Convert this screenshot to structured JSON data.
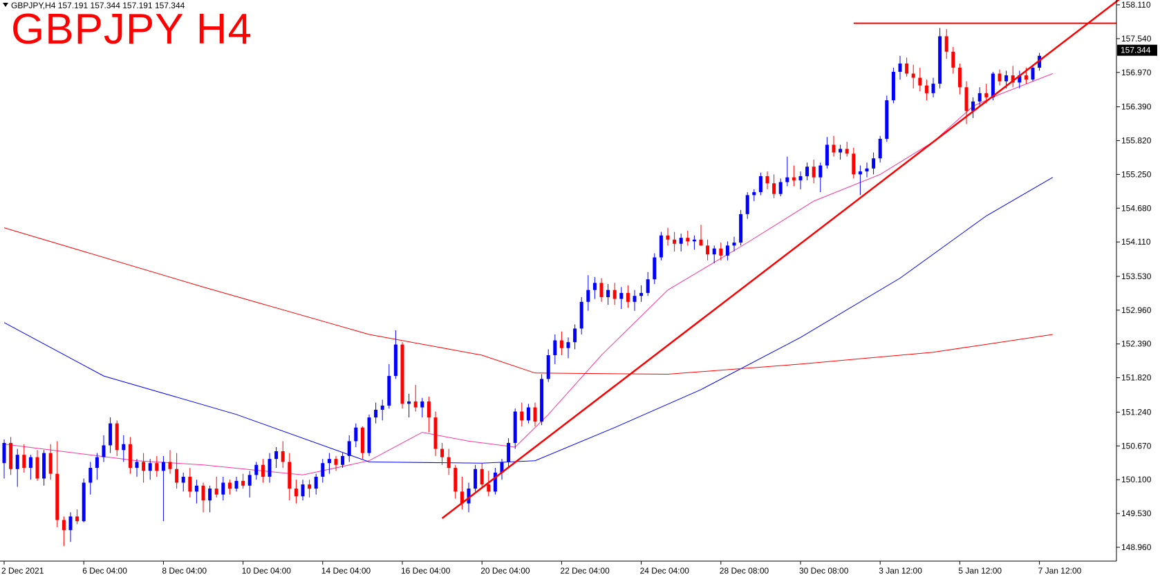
{
  "header": {
    "symbol_line": "GBPJPY,H4  157.191 157.344 157.191 157.344"
  },
  "title": "GBPJPY H4",
  "chart_data": {
    "type": "candlestick",
    "symbol": "GBPJPY",
    "timeframe": "H4",
    "ohlc_header": {
      "open": 157.191,
      "high": 157.344,
      "low": 157.191,
      "close": 157.344
    },
    "current_price": "157.344",
    "y_ticks": [
      "158.110",
      "157.540",
      "156.970",
      "156.390",
      "155.820",
      "155.250",
      "154.680",
      "154.110",
      "153.530",
      "152.960",
      "152.390",
      "151.820",
      "151.240",
      "150.670",
      "150.100",
      "149.530",
      "148.960"
    ],
    "x_ticks": [
      "2 Dec 2021",
      "6 Dec 04:00",
      "8 Dec 04:00",
      "10 Dec 04:00",
      "14 Dec 04:00",
      "16 Dec 04:00",
      "20 Dec 04:00",
      "22 Dec 04:00",
      "24 Dec 04:00",
      "28 Dec 08:00",
      "30 Dec 08:00",
      "3 Jan 12:00",
      "5 Jan 12:00",
      "7 Jan 12:00"
    ],
    "y_range": [
      148.7,
      158.2
    ],
    "colors": {
      "bull": "#0000ff",
      "bear": "#ff0000",
      "ma_fast": "#ff3399",
      "ma_mid": "#0000ff",
      "ma_slow": "#ff0000",
      "trendlines": "#ff0000"
    },
    "candles_ohlc": [
      [
        150.38,
        150.78,
        150.12,
        150.72
      ],
      [
        150.72,
        150.82,
        150.18,
        150.28
      ],
      [
        150.28,
        150.62,
        149.98,
        150.52
      ],
      [
        150.52,
        150.7,
        150.22,
        150.3
      ],
      [
        150.3,
        150.52,
        150.1,
        150.48
      ],
      [
        150.48,
        150.6,
        150.08,
        150.12
      ],
      [
        150.12,
        150.6,
        150.0,
        150.55
      ],
      [
        150.55,
        150.7,
        150.1,
        150.2
      ],
      [
        150.2,
        150.75,
        149.3,
        149.42
      ],
      [
        149.42,
        149.48,
        148.98,
        149.25
      ],
      [
        149.25,
        149.55,
        149.05,
        149.48
      ],
      [
        149.48,
        149.6,
        149.35,
        149.4
      ],
      [
        149.4,
        150.12,
        149.38,
        150.05
      ],
      [
        150.05,
        150.4,
        149.85,
        150.3
      ],
      [
        150.3,
        150.55,
        150.1,
        150.48
      ],
      [
        150.48,
        150.85,
        150.4,
        150.68
      ],
      [
        150.68,
        151.15,
        150.55,
        151.05
      ],
      [
        151.05,
        151.1,
        150.5,
        150.6
      ],
      [
        150.6,
        150.85,
        150.4,
        150.7
      ],
      [
        150.7,
        150.82,
        150.2,
        150.3
      ],
      [
        150.3,
        150.45,
        150.15,
        150.4
      ],
      [
        150.4,
        150.55,
        150.05,
        150.25
      ],
      [
        150.25,
        150.45,
        150.1,
        150.38
      ],
      [
        150.38,
        150.5,
        150.15,
        150.25
      ],
      [
        150.25,
        150.5,
        149.4,
        150.4
      ],
      [
        150.4,
        150.6,
        150.2,
        150.28
      ],
      [
        150.28,
        150.55,
        149.95,
        150.05
      ],
      [
        150.05,
        150.22,
        149.9,
        150.15
      ],
      [
        150.15,
        150.3,
        149.8,
        149.9
      ],
      [
        149.9,
        150.1,
        149.7,
        150.0
      ],
      [
        150.0,
        150.05,
        149.55,
        149.75
      ],
      [
        149.75,
        150.0,
        149.55,
        149.95
      ],
      [
        149.95,
        150.15,
        149.8,
        149.85
      ],
      [
        149.85,
        150.15,
        149.75,
        150.05
      ],
      [
        150.05,
        150.1,
        149.85,
        149.95
      ],
      [
        149.95,
        150.15,
        149.9,
        150.08
      ],
      [
        150.08,
        150.2,
        149.95,
        150.0
      ],
      [
        150.0,
        150.25,
        149.8,
        150.18
      ],
      [
        150.18,
        150.4,
        150.1,
        150.35
      ],
      [
        150.35,
        150.45,
        150.05,
        150.15
      ],
      [
        150.15,
        150.55,
        150.05,
        150.45
      ],
      [
        150.45,
        150.65,
        150.3,
        150.58
      ],
      [
        150.58,
        150.75,
        150.3,
        150.4
      ],
      [
        150.4,
        150.55,
        149.75,
        149.95
      ],
      [
        149.95,
        150.1,
        149.7,
        149.82
      ],
      [
        149.82,
        150.1,
        149.75,
        150.02
      ],
      [
        150.02,
        150.1,
        149.8,
        149.95
      ],
      [
        149.95,
        150.2,
        149.85,
        150.15
      ],
      [
        150.15,
        150.45,
        150.05,
        150.38
      ],
      [
        150.38,
        150.55,
        150.2,
        150.45
      ],
      [
        150.45,
        150.5,
        150.25,
        150.35
      ],
      [
        150.35,
        150.55,
        150.3,
        150.5
      ],
      [
        150.5,
        150.85,
        150.4,
        150.75
      ],
      [
        150.75,
        151.05,
        150.65,
        150.98
      ],
      [
        150.98,
        151.0,
        150.45,
        150.55
      ],
      [
        150.55,
        151.2,
        150.5,
        151.15
      ],
      [
        151.15,
        151.4,
        151.05,
        151.28
      ],
      [
        151.28,
        151.45,
        151.1,
        151.35
      ],
      [
        151.35,
        152.05,
        151.3,
        151.85
      ],
      [
        151.85,
        152.62,
        151.8,
        152.38
      ],
      [
        152.38,
        152.42,
        151.3,
        151.38
      ],
      [
        151.38,
        151.55,
        151.15,
        151.42
      ],
      [
        151.42,
        151.7,
        151.25,
        151.32
      ],
      [
        151.32,
        151.48,
        151.15,
        151.42
      ],
      [
        151.42,
        151.5,
        150.9,
        151.15
      ],
      [
        151.15,
        151.25,
        150.5,
        150.62
      ],
      [
        150.62,
        150.72,
        150.35,
        150.48
      ],
      [
        150.48,
        150.62,
        150.18,
        150.3
      ],
      [
        150.3,
        150.35,
        149.78,
        149.9
      ],
      [
        149.9,
        150.15,
        149.6,
        149.7
      ],
      [
        149.7,
        150.05,
        149.55,
        149.95
      ],
      [
        149.95,
        150.35,
        149.9,
        150.28
      ],
      [
        150.28,
        150.38,
        149.95,
        150.02
      ],
      [
        150.02,
        150.25,
        149.82,
        149.9
      ],
      [
        149.9,
        150.3,
        149.85,
        150.22
      ],
      [
        150.22,
        150.45,
        150.1,
        150.4
      ],
      [
        150.4,
        150.8,
        150.3,
        150.72
      ],
      [
        150.72,
        151.3,
        150.62,
        151.25
      ],
      [
        151.25,
        151.4,
        151.0,
        151.1
      ],
      [
        151.1,
        151.38,
        151.05,
        151.32
      ],
      [
        151.32,
        151.4,
        151.0,
        151.08
      ],
      [
        151.08,
        151.88,
        151.02,
        151.8
      ],
      [
        151.8,
        152.3,
        151.75,
        152.2
      ],
      [
        152.2,
        152.55,
        152.05,
        152.45
      ],
      [
        152.45,
        152.6,
        152.2,
        152.32
      ],
      [
        152.32,
        152.5,
        152.15,
        152.42
      ],
      [
        152.42,
        152.72,
        152.3,
        152.65
      ],
      [
        152.65,
        153.18,
        152.55,
        153.1
      ],
      [
        153.1,
        153.55,
        152.95,
        153.3
      ],
      [
        153.3,
        153.52,
        153.15,
        153.42
      ],
      [
        153.42,
        153.5,
        153.1,
        153.18
      ],
      [
        153.18,
        153.4,
        153.05,
        153.3
      ],
      [
        153.3,
        153.42,
        153.05,
        153.15
      ],
      [
        153.15,
        153.35,
        152.98,
        153.25
      ],
      [
        153.25,
        153.38,
        153.0,
        153.1
      ],
      [
        153.1,
        153.3,
        152.95,
        153.2
      ],
      [
        153.2,
        153.38,
        153.1,
        153.25
      ],
      [
        153.25,
        153.6,
        153.2,
        153.48
      ],
      [
        153.48,
        153.92,
        153.4,
        153.85
      ],
      [
        153.85,
        154.28,
        153.8,
        154.22
      ],
      [
        154.22,
        154.35,
        154.05,
        154.15
      ],
      [
        154.15,
        154.28,
        153.95,
        154.08
      ],
      [
        154.08,
        154.25,
        153.95,
        154.18
      ],
      [
        154.18,
        154.3,
        154.05,
        154.12
      ],
      [
        154.12,
        154.22,
        153.98,
        154.15
      ],
      [
        154.15,
        154.4,
        154.05,
        154.05
      ],
      [
        154.05,
        154.15,
        153.8,
        153.9
      ],
      [
        153.9,
        154.05,
        153.75,
        154.0
      ],
      [
        154.0,
        154.1,
        153.8,
        153.88
      ],
      [
        153.88,
        154.12,
        153.8,
        154.05
      ],
      [
        154.05,
        154.2,
        153.95,
        154.1
      ],
      [
        154.1,
        154.65,
        154.05,
        154.58
      ],
      [
        154.58,
        154.95,
        154.5,
        154.9
      ],
      [
        154.9,
        155.0,
        154.8,
        154.95
      ],
      [
        154.95,
        155.28,
        154.9,
        155.22
      ],
      [
        155.22,
        155.3,
        155.0,
        155.1
      ],
      [
        155.1,
        155.25,
        154.85,
        154.92
      ],
      [
        154.92,
        155.18,
        154.88,
        155.12
      ],
      [
        155.12,
        155.55,
        155.05,
        155.2
      ],
      [
        155.2,
        155.4,
        155.05,
        155.15
      ],
      [
        155.15,
        155.3,
        155.0,
        155.22
      ],
      [
        155.22,
        155.45,
        155.15,
        155.38
      ],
      [
        155.38,
        155.5,
        155.1,
        155.2
      ],
      [
        155.2,
        155.45,
        154.95,
        155.4
      ],
      [
        155.4,
        155.88,
        155.35,
        155.75
      ],
      [
        155.75,
        155.9,
        155.55,
        155.62
      ],
      [
        155.62,
        155.75,
        155.5,
        155.68
      ],
      [
        155.68,
        155.8,
        155.55,
        155.6
      ],
      [
        155.6,
        155.7,
        155.18,
        155.25
      ],
      [
        155.25,
        155.4,
        154.9,
        155.3
      ],
      [
        155.3,
        155.45,
        155.2,
        155.35
      ],
      [
        155.35,
        155.62,
        155.25,
        155.52
      ],
      [
        155.52,
        155.9,
        155.45,
        155.85
      ],
      [
        155.85,
        156.58,
        155.8,
        156.5
      ],
      [
        156.5,
        157.05,
        156.45,
        156.98
      ],
      [
        156.98,
        157.25,
        156.85,
        157.12
      ],
      [
        157.12,
        157.22,
        156.9,
        156.95
      ],
      [
        156.95,
        157.1,
        156.7,
        156.88
      ],
      [
        156.88,
        157.05,
        156.65,
        156.75
      ],
      [
        156.75,
        156.85,
        156.5,
        156.62
      ],
      [
        156.62,
        156.88,
        156.55,
        156.78
      ],
      [
        156.78,
        157.72,
        156.7,
        157.58
      ],
      [
        157.58,
        157.7,
        157.2,
        157.32
      ],
      [
        157.32,
        157.4,
        156.95,
        157.05
      ],
      [
        157.05,
        157.12,
        156.6,
        156.72
      ],
      [
        156.72,
        156.82,
        156.1,
        156.32
      ],
      [
        156.32,
        156.55,
        156.2,
        156.48
      ],
      [
        156.48,
        156.72,
        156.4,
        156.62
      ],
      [
        156.62,
        156.78,
        156.45,
        156.55
      ],
      [
        156.55,
        156.98,
        156.5,
        156.95
      ],
      [
        156.95,
        157.02,
        156.75,
        156.82
      ],
      [
        156.82,
        157.0,
        156.7,
        156.92
      ],
      [
        156.92,
        157.08,
        156.72,
        156.8
      ],
      [
        156.8,
        157.0,
        156.7,
        156.92
      ],
      [
        156.92,
        157.05,
        156.78,
        156.85
      ],
      [
        156.85,
        157.1,
        156.82,
        157.05
      ],
      [
        157.05,
        157.3,
        157.0,
        157.25
      ]
    ],
    "moving_averages": [
      {
        "color": "#ff3399",
        "values": [
          [
            0,
            150.7
          ],
          [
            20,
            150.42
          ],
          [
            30,
            150.35
          ],
          [
            45,
            150.18
          ],
          [
            55,
            150.42
          ],
          [
            63,
            150.9
          ],
          [
            70,
            150.75
          ],
          [
            77,
            150.65
          ],
          [
            82,
            151.2
          ],
          [
            90,
            152.2
          ],
          [
            100,
            153.3
          ],
          [
            112,
            154.1
          ],
          [
            122,
            154.8
          ],
          [
            132,
            155.25
          ],
          [
            140,
            155.8
          ],
          [
            146,
            156.4
          ],
          [
            150,
            156.6
          ],
          [
            158,
            156.95
          ]
        ]
      },
      {
        "color": "#0000ff",
        "values": [
          [
            0,
            152.75
          ],
          [
            15,
            151.85
          ],
          [
            35,
            151.2
          ],
          [
            55,
            150.4
          ],
          [
            72,
            150.38
          ],
          [
            80,
            150.42
          ],
          [
            92,
            150.98
          ],
          [
            105,
            151.62
          ],
          [
            120,
            152.5
          ],
          [
            135,
            153.5
          ],
          [
            148,
            154.55
          ],
          [
            158,
            155.2
          ]
        ]
      },
      {
        "color": "#ff0000",
        "values": [
          [
            0,
            154.35
          ],
          [
            30,
            153.35
          ],
          [
            55,
            152.55
          ],
          [
            72,
            152.2
          ],
          [
            80,
            151.9
          ],
          [
            100,
            151.88
          ],
          [
            120,
            152.05
          ],
          [
            140,
            152.25
          ],
          [
            158,
            152.55
          ]
        ]
      }
    ],
    "trendline_up": {
      "start": {
        "bar": 66,
        "price": 149.45
      },
      "end": {
        "bar": 168,
        "price": 158.2
      }
    },
    "resistance": {
      "from_bar": 128,
      "price": 157.8
    }
  }
}
